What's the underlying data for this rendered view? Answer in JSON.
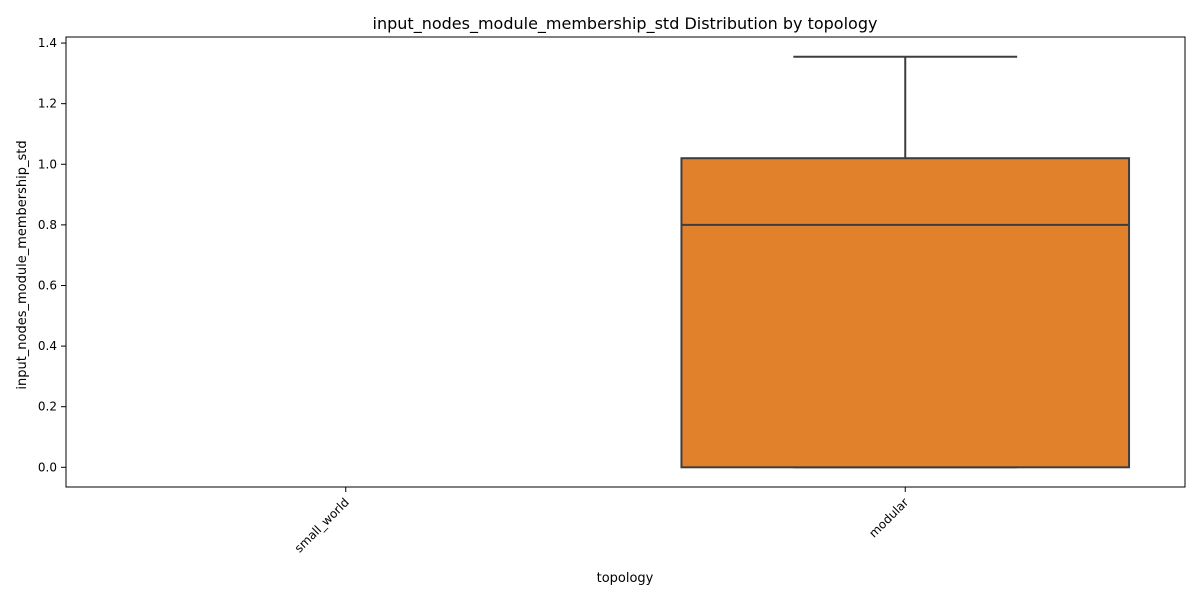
{
  "chart_data": {
    "type": "box",
    "title": "input_nodes_module_membership_std Distribution by topology",
    "xlabel": "topology",
    "ylabel": "input_nodes_module_membership_std",
    "categories": [
      "small_world",
      "modular"
    ],
    "yticks": [
      "0.0",
      "0.2",
      "0.4",
      "0.6",
      "0.8",
      "1.0",
      "1.2",
      "1.4"
    ],
    "ylim": [
      -0.065,
      1.42
    ],
    "grid": false,
    "colors": {
      "modular_box": "#e1812c",
      "box_edge": "#3d3d3d",
      "axes": "#000000"
    },
    "boxes": [
      {
        "category": "small_world",
        "min": null,
        "q1": null,
        "median": null,
        "q3": null,
        "max": null
      },
      {
        "category": "modular",
        "min": 0.0,
        "q1": 0.0,
        "median": 0.8,
        "q3": 1.02,
        "max": 1.355
      }
    ]
  }
}
